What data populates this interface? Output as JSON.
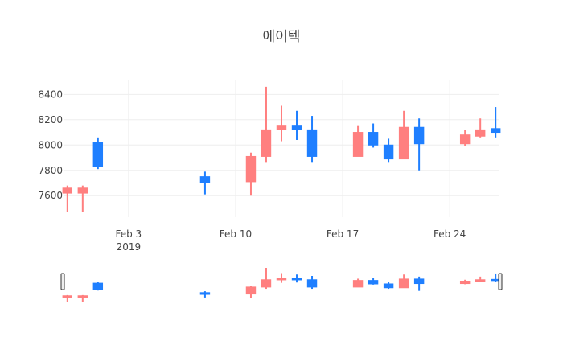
{
  "chart_data": {
    "type": "candlestick",
    "title": "에이텍",
    "x_tick_labels": [
      "Feb 3",
      "Feb 10",
      "Feb 17",
      "Feb 24"
    ],
    "x_tick_sublabel": "2019",
    "y_ticks": [
      7600,
      7800,
      8000,
      8200,
      8400
    ],
    "ylim": [
      7430,
      8510
    ],
    "xlim": [
      "2019-01-29T19:12",
      "2019-02-27T04:48"
    ],
    "grid": true,
    "legend": "none",
    "rangeslider": true,
    "colors": {
      "increasing": "#FF7F7F",
      "decreasing": "#1F7FFF",
      "grid": "#eeeeee",
      "text": "#444444"
    },
    "candles": [
      {
        "date": "2019-01-30",
        "open": 7620,
        "high": 7680,
        "low": 7470,
        "close": 7660
      },
      {
        "date": "2019-01-31",
        "open": 7620,
        "high": 7680,
        "low": 7470,
        "close": 7660
      },
      {
        "date": "2019-02-01",
        "open": 8020,
        "high": 8060,
        "low": 7810,
        "close": 7830
      },
      {
        "date": "2019-02-08",
        "open": 7750,
        "high": 7790,
        "low": 7610,
        "close": 7700
      },
      {
        "date": "2019-02-11",
        "open": 7710,
        "high": 7940,
        "low": 7600,
        "close": 7910
      },
      {
        "date": "2019-02-12",
        "open": 7910,
        "high": 8460,
        "low": 7860,
        "close": 8120
      },
      {
        "date": "2019-02-13",
        "open": 8120,
        "high": 8310,
        "low": 8030,
        "close": 8150
      },
      {
        "date": "2019-02-14",
        "open": 8150,
        "high": 8270,
        "low": 8040,
        "close": 8120
      },
      {
        "date": "2019-02-15",
        "open": 8120,
        "high": 8230,
        "low": 7860,
        "close": 7910
      },
      {
        "date": "2019-02-18",
        "open": 7910,
        "high": 8150,
        "low": 7910,
        "close": 8100
      },
      {
        "date": "2019-02-19",
        "open": 8100,
        "high": 8170,
        "low": 7980,
        "close": 8000
      },
      {
        "date": "2019-02-20",
        "open": 8000,
        "high": 8050,
        "low": 7860,
        "close": 7890
      },
      {
        "date": "2019-02-21",
        "open": 7890,
        "high": 8270,
        "low": 7890,
        "close": 8140
      },
      {
        "date": "2019-02-22",
        "open": 8140,
        "high": 8210,
        "low": 7800,
        "close": 8010
      },
      {
        "date": "2019-02-25",
        "open": 8010,
        "high": 8120,
        "low": 7990,
        "close": 8080
      },
      {
        "date": "2019-02-26",
        "open": 8070,
        "high": 8210,
        "low": 8060,
        "close": 8120
      },
      {
        "date": "2019-02-27",
        "open": 8130,
        "high": 8300,
        "low": 8060,
        "close": 8100
      }
    ]
  }
}
